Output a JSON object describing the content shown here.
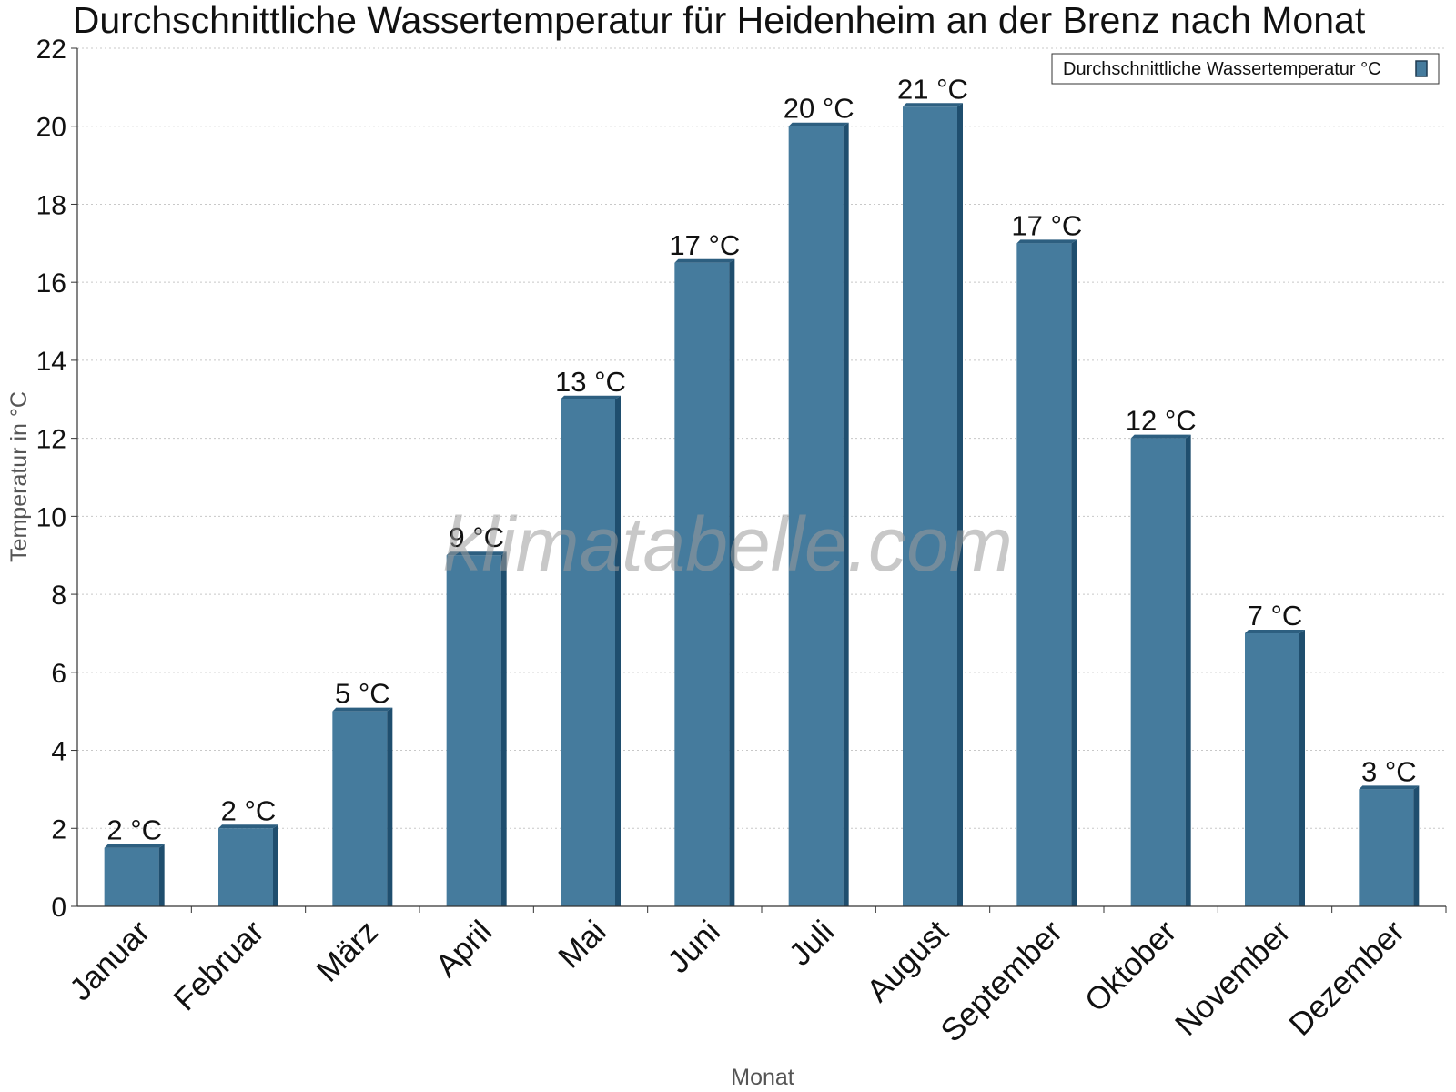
{
  "chart_data": {
    "type": "bar",
    "title": "Durchschnittliche Wassertemperatur für Heidenheim an der Brenz nach Monat",
    "xlabel": "Monat",
    "ylabel": "Temperatur in °C",
    "categories": [
      "Januar",
      "Februar",
      "März",
      "April",
      "Mai",
      "Juni",
      "Juli",
      "August",
      "September",
      "Oktober",
      "November",
      "Dezember"
    ],
    "series": [
      {
        "name": "Durchschnittliche Wassertemperatur °C",
        "values": [
          1.5,
          2,
          5,
          9,
          13,
          16.5,
          20,
          20.5,
          17,
          12,
          7,
          3
        ],
        "labels": [
          "2 °C",
          "2 °C",
          "5 °C",
          "9 °C",
          "13 °C",
          "17 °C",
          "20 °C",
          "21 °C",
          "17 °C",
          "12 °C",
          "7 °C",
          "3 °C"
        ]
      }
    ],
    "yticks": [
      0,
      2,
      4,
      6,
      8,
      10,
      12,
      14,
      16,
      18,
      20,
      22
    ],
    "ylim": [
      0,
      22
    ],
    "grid": true,
    "legend_position": "top-right",
    "colors": {
      "bar": "#457b9d",
      "bar_side": "#1f4e6e",
      "bar_top": "#2d5f80"
    }
  },
  "watermark": "klimatabelle.com"
}
